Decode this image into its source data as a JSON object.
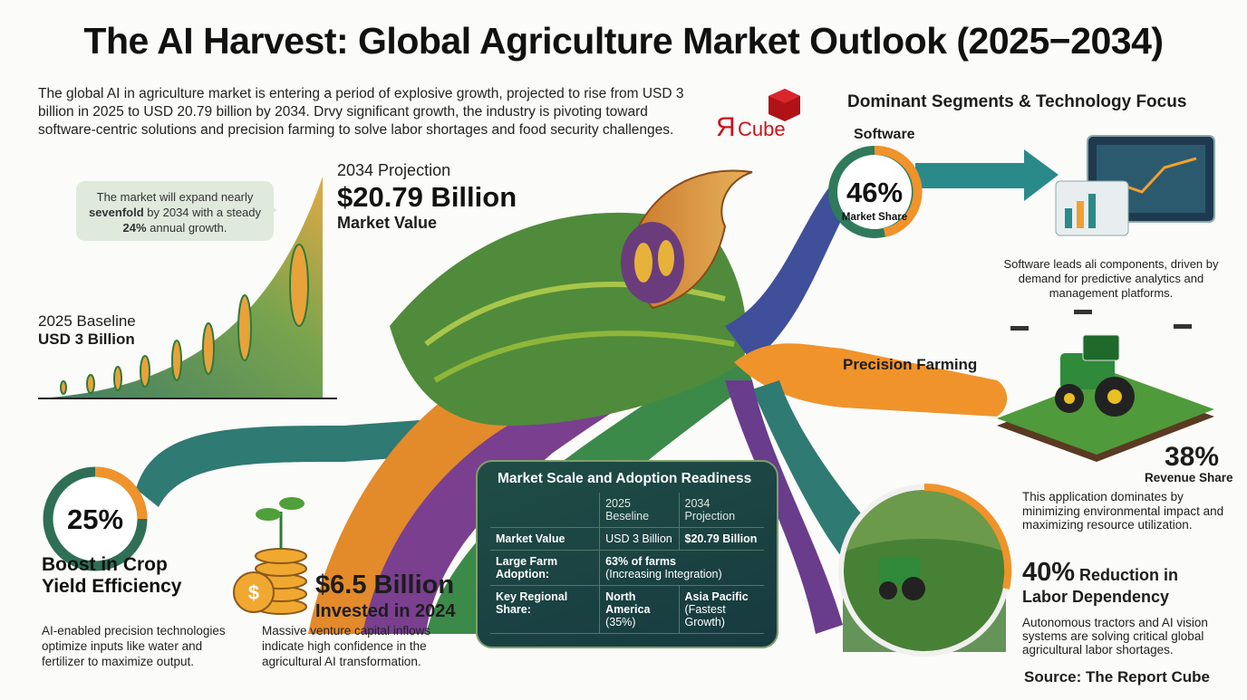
{
  "title": "The AI Harvest: Global Agriculture Market Outlook (2025−2034)",
  "intro": "The global AI in agriculture market is entering a period of explosive growth, projected to rise from USD 3 billion in 2025 to USD 20.79 billion by 2034. Drvy significant growth, the industry is pivoting toward software-centric solutions and precision farming to solve labor shortages and food security challenges.",
  "logo": {
    "text": "ЯCube",
    "color": "#c8141b"
  },
  "growth": {
    "callout_pre": "The market will expand nearly ",
    "callout_bold1": "sevenfold",
    "callout_mid": " by 2034 with a steady ",
    "callout_bold2": "24%",
    "callout_post": " annual growth.",
    "projection_label": "2034 Projection",
    "projection_value": "$20.79 Billion",
    "projection_sub": "Market Value",
    "baseline_label": "2025 Baseline",
    "baseline_value": "USD 3 Billion"
  },
  "yield": {
    "percent": "25%",
    "fraction": 0.25,
    "title_line1": "Boost in Crop",
    "title_line2": "Yield Efficiency",
    "desc": "AI-enabled precision technologies optimize inputs like water and fertilizer to maximize output."
  },
  "investment": {
    "amount": "$6.5 Billion",
    "sub": "Invested in 2024",
    "desc": "Massive venture capital inflows indicate high confidence in the agricultural AI transformation.",
    "icon": "coins-dollar-icon"
  },
  "table": {
    "title": "Market Scale and Adoption Readiness",
    "headers": [
      "",
      "2025 Beseline",
      "2034 Projection"
    ],
    "rows": [
      {
        "label": "Market Value",
        "c1": "USD 3 Billion",
        "c2": "$20.79 Billion"
      },
      {
        "label": "Large Farm Adoption:",
        "c1a": "63% of farms",
        "c1b": "(Increasing Integration)"
      },
      {
        "label": "Key Regional Share:",
        "c1a": "North America",
        "c1b": "(35%)",
        "c2a": "Asia Pacific",
        "c2b": "(Fastest Growth)"
      }
    ]
  },
  "segments": {
    "title": "Dominant Segments & Technology Focus",
    "software": {
      "label": "Software",
      "percent": "46%",
      "fraction": 0.46,
      "sub": "Market Share",
      "desc": "Software leads ali components, driven by demand for predictive analytics and management platforms."
    },
    "precision": {
      "label": "Precision Farming",
      "percent": "38%",
      "sub": "Revenue Share",
      "desc": "This application dominates by minimizing environmental impact and maximizing resource utilization."
    },
    "labor": {
      "percent": "40%",
      "title_a": " Reduction in",
      "title_b": "Labor Dependency",
      "desc": "Autonomous tractors and AI vision systems are solving critical global agricultural labor shortages."
    }
  },
  "source": "Source: The Report Cube",
  "colors": {
    "green": "#2e7a5a",
    "orange": "#f0932b",
    "teal": "#2a8a8a",
    "purple": "#6a3c8c",
    "navy": "#1f4d45"
  }
}
